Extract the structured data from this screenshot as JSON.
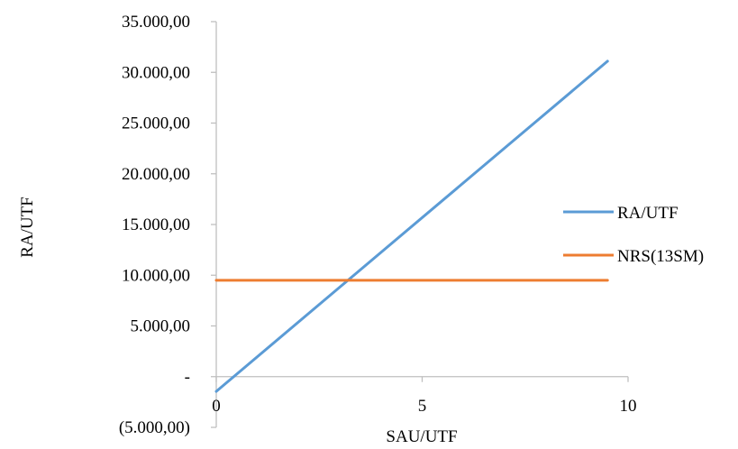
{
  "chart_data": {
    "type": "line",
    "title": "",
    "xlabel": "SAU/UTF",
    "ylabel": "RA/UTF",
    "xlim": [
      0,
      10
    ],
    "ylim": [
      -5000,
      35000
    ],
    "x_ticks": [
      {
        "value": 0,
        "label": "0"
      },
      {
        "value": 5,
        "label": "5"
      },
      {
        "value": 10,
        "label": "10"
      }
    ],
    "y_ticks": [
      {
        "value": 35000,
        "label": "35.000,00"
      },
      {
        "value": 30000,
        "label": "30.000,00"
      },
      {
        "value": 25000,
        "label": "25.000,00"
      },
      {
        "value": 20000,
        "label": "20.000,00"
      },
      {
        "value": 15000,
        "label": "15.000,00"
      },
      {
        "value": 10000,
        "label": "10.000,00"
      },
      {
        "value": 5000,
        "label": "5.000,00"
      },
      {
        "value": 0,
        "label": "-"
      },
      {
        "value": -5000,
        "label": "(5.000,00)"
      }
    ],
    "grid": false,
    "legend_position": "right",
    "series": [
      {
        "name": "RA/UTF",
        "color": "#5B9BD5",
        "x": [
          0,
          9.5
        ],
        "y": [
          -1450,
          31100
        ]
      },
      {
        "name": "NRS(13SM)",
        "color": "#ED7D31",
        "x": [
          0,
          9.5
        ],
        "y": [
          9500,
          9500
        ]
      }
    ]
  }
}
